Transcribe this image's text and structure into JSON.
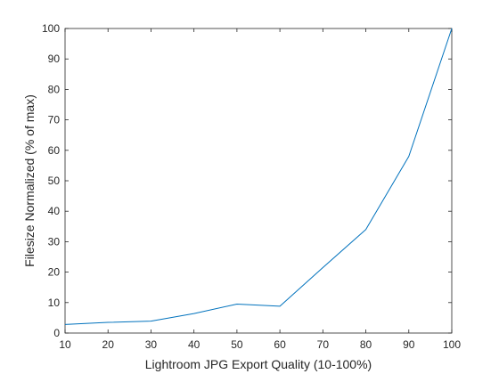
{
  "chart_data": {
    "type": "line",
    "title": "",
    "xlabel": "Lightroom JPG Export Quality (10-100%)",
    "ylabel": "Filesize Normalized (% of max)",
    "xlim": [
      10,
      100
    ],
    "ylim": [
      0,
      100
    ],
    "xticks": [
      10,
      20,
      30,
      40,
      50,
      60,
      70,
      80,
      90,
      100
    ],
    "yticks": [
      0,
      10,
      20,
      30,
      40,
      50,
      60,
      70,
      80,
      90,
      100
    ],
    "grid": false,
    "legend": "none",
    "series": [
      {
        "color": "#0072bd",
        "x": [
          10,
          20,
          30,
          40,
          50,
          60,
          70,
          80,
          90,
          100
        ],
        "y": [
          2.8,
          3.5,
          3.9,
          6.4,
          9.5,
          8.8,
          21.5,
          34,
          58,
          100
        ]
      }
    ]
  }
}
